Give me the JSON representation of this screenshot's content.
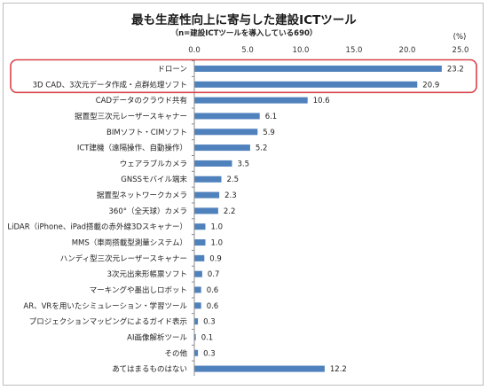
{
  "chart_data": {
    "type": "bar",
    "orientation": "horizontal",
    "title": "最も生産性向上に寄与した建設ICTツール",
    "subtitle": "（n=建設ICTツールを導入している690）",
    "unit": "(%)",
    "xlim": [
      0,
      25
    ],
    "ticks": [
      "0.0",
      "5.0",
      "10.0",
      "15.0",
      "20.0",
      "25.0"
    ],
    "tick_values": [
      0,
      5,
      10,
      15,
      20,
      25
    ],
    "bar_color": "#4f81bd",
    "highlight_color": "#d9434a",
    "highlighted_categories": [
      "ドローン",
      "3D CAD、3次元データ作成・点群処理ソフト"
    ],
    "categories": [
      "ドローン",
      "3D CAD、3次元データ作成・点群処理ソフト",
      "CADデータのクラウド共有",
      "据置型三次元レーザースキャナー",
      "BIMソフト・CIMソフト",
      "ICT建機（遠隔操作、自動操作）",
      "ウェアラブルカメラ",
      "GNSSモバイル端末",
      "据置型ネットワークカメラ",
      "360°（全天球）カメラ",
      "LiDAR（iPhone、iPad搭載の赤外線3Dスキャナー）",
      "MMS（車両搭載型測量システム）",
      "ハンディ型三次元レーザースキャナー",
      "3次元出来形帳票ソフト",
      "マーキングや墨出しロボット",
      "AR、VRを用いたシミュレーション・学習ツール",
      "プロジェクションマッピングによるガイド表示",
      "AI画像解析ツール",
      "その他",
      "あてはまるものはない"
    ],
    "values": [
      23.2,
      20.9,
      10.6,
      6.1,
      5.9,
      5.2,
      3.5,
      2.5,
      2.3,
      2.2,
      1.0,
      1.0,
      0.9,
      0.7,
      0.6,
      0.6,
      0.3,
      0.1,
      0.3,
      12.2
    ],
    "value_labels": [
      "23.2",
      "20.9",
      "10.6",
      "6.1",
      "5.9",
      "5.2",
      "3.5",
      "2.5",
      "2.3",
      "2.2",
      "1.0",
      "1.0",
      "0.9",
      "0.7",
      "0.6",
      "0.6",
      "0.3",
      "0.1",
      "0.3",
      "12.2"
    ]
  }
}
